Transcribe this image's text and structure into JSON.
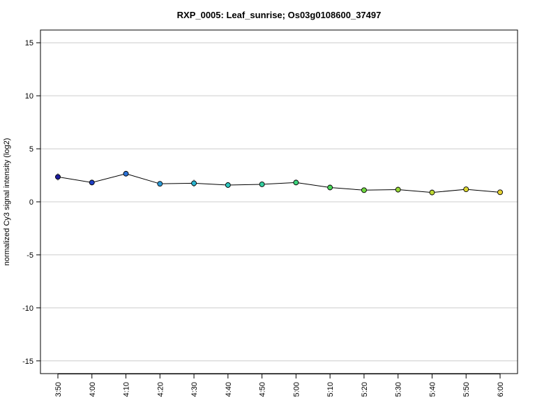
{
  "chart_data": {
    "type": "line",
    "title": "RXP_0005: Leaf_sunrise; Os03g0108600_37497",
    "xlabel": "",
    "ylabel": "normalized Cy3 signal intensity (log2)",
    "categories": [
      "3:50",
      "4:00",
      "4:10",
      "4:20",
      "4:30",
      "4:40",
      "4:50",
      "5:00",
      "5:10",
      "5:20",
      "5:30",
      "5:40",
      "5:50",
      "6:00"
    ],
    "values": [
      2.35,
      1.82,
      2.65,
      1.7,
      1.75,
      1.58,
      1.65,
      1.82,
      1.35,
      1.1,
      1.15,
      0.88,
      1.18,
      0.9
    ],
    "error": [
      0.35,
      0.25,
      0.15,
      0.12,
      0.35,
      0.1,
      0.2,
      0.12,
      0.25,
      0.12,
      0.28,
      0.25,
      0.1,
      0.12
    ],
    "point_colors": [
      "#1c1c9e",
      "#1f3fc4",
      "#2b72d6",
      "#2c9ad6",
      "#2ab5d0",
      "#2ec7bf",
      "#34cf9f",
      "#3cd47c",
      "#4ad75a",
      "#6fd83e",
      "#98d838",
      "#bdd833",
      "#dcd62f",
      "#e6d232"
    ],
    "line_color": "#000000",
    "error_color": "#808080",
    "grid_color": "#cccccc",
    "yticks": [
      -15,
      -10,
      -5,
      0,
      5,
      10,
      15
    ],
    "ylim": [
      -16.2,
      16.2
    ],
    "grid": true
  }
}
